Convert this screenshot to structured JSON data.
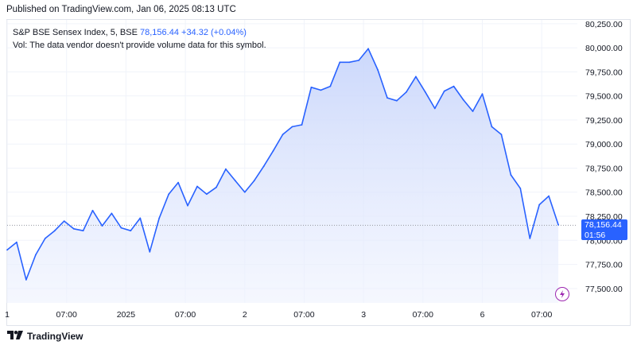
{
  "header": {
    "published": "Published on TradingView.com, Jan 06, 2025 08:13 UTC"
  },
  "legend": {
    "symbol": "S&P BSE Sensex Index, 5, BSE",
    "last": "78,156.44",
    "change": "+34.32 (+0.04%)",
    "volume_note": "Vol: The data vendor doesn't provide volume data for this symbol."
  },
  "price_badge": {
    "price": "78,156.44",
    "countdown": "01:56"
  },
  "footer": {
    "brand": "TradingView",
    "logo_icon": "tradingview-logo-icon"
  },
  "colors": {
    "line": "#2962ff",
    "fill_top": "#c9d6fb",
    "grid": "#f0f3fa",
    "badge": "#2962ff",
    "bolt": "#9c27b0"
  },
  "chart_data": {
    "type": "area",
    "title": "S&P BSE Sensex Index, 5, BSE",
    "xlabel": "",
    "ylabel": "",
    "ylim": [
      77350,
      80290
    ],
    "y_ticks": [
      "77,500.00",
      "77,750.00",
      "78,000.00",
      "78,250.00",
      "78,500.00",
      "78,750.00",
      "79,000.00",
      "79,250.00",
      "79,500.00",
      "79,750.00",
      "80,000.00",
      "80,250.00"
    ],
    "y_tick_values": [
      77500,
      77750,
      78000,
      78250,
      78500,
      78750,
      79000,
      79250,
      79500,
      79750,
      80000,
      80250
    ],
    "x_tick_labels": [
      "1",
      "07:00",
      "2025",
      "07:00",
      "2",
      "07:00",
      "3",
      "07:00",
      "6",
      "07:00"
    ],
    "x_tick_index": [
      0,
      12.5,
      25,
      37.5,
      50,
      62.5,
      75,
      87.5,
      100,
      112.5
    ],
    "last_price": 78156.44,
    "grid": true,
    "x_index": [
      0,
      2,
      4,
      6,
      8,
      10,
      12,
      14,
      16,
      18,
      20,
      22,
      24,
      26,
      28,
      30,
      32,
      34,
      36,
      38,
      40,
      42,
      44,
      46,
      48,
      50,
      52,
      54,
      56,
      58,
      60,
      62,
      64,
      66,
      68,
      70,
      72,
      74,
      76,
      78,
      80,
      82,
      84,
      86,
      88,
      90,
      92,
      94,
      96,
      98,
      100,
      102,
      104,
      106,
      108,
      110,
      112,
      114,
      116
    ],
    "values": [
      77900,
      77980,
      77590,
      77850,
      78020,
      78100,
      78200,
      78120,
      78100,
      78310,
      78150,
      78280,
      78130,
      78100,
      78230,
      77880,
      78230,
      78480,
      78600,
      78360,
      78560,
      78480,
      78550,
      78740,
      78620,
      78500,
      78620,
      78770,
      78930,
      79100,
      79180,
      79200,
      79590,
      79560,
      79600,
      79850,
      79850,
      79870,
      79990,
      79770,
      79480,
      79450,
      79540,
      79700,
      79540,
      79370,
      79550,
      79600,
      79460,
      79340,
      79520,
      79180,
      79100,
      78680,
      78540,
      78020,
      78370,
      78460,
      78160
    ]
  }
}
